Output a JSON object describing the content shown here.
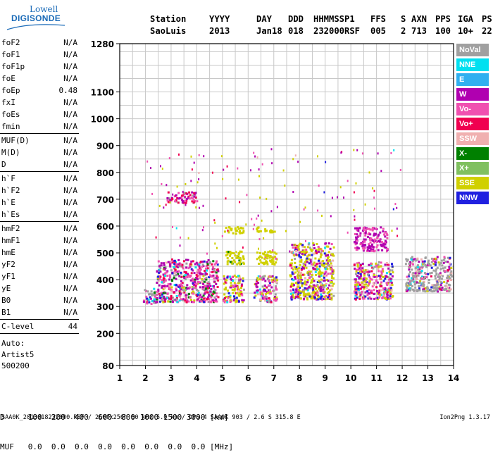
{
  "logo": {
    "line1": "Lowell",
    "line2": "DIGISONDE"
  },
  "header": {
    "labels": [
      "Station",
      "YYYY",
      "DAY",
      "DDD",
      "HHMMSS",
      "P1",
      "FFS",
      "S",
      "AXN",
      "PPS",
      "IGA",
      "PS"
    ],
    "values": [
      "SaoLuis",
      "2013",
      "Jan18",
      "018",
      "232000",
      "RSF",
      "005",
      "2",
      "713",
      "100",
      "10+",
      "22"
    ]
  },
  "params": [
    {
      "k": "foF2",
      "v": "N/A"
    },
    {
      "k": "foF1",
      "v": "N/A"
    },
    {
      "k": "foF1p",
      "v": "N/A"
    },
    {
      "k": "foE",
      "v": "N/A"
    },
    {
      "k": "foEp",
      "v": "0.48"
    },
    {
      "k": "fxI",
      "v": "N/A"
    },
    {
      "k": "foEs",
      "v": "N/A"
    },
    {
      "k": "fmin",
      "v": "N/A"
    },
    {
      "k": "MUF(D)",
      "v": "N/A"
    },
    {
      "k": "M(D)",
      "v": "N/A"
    },
    {
      "k": "D",
      "v": "N/A"
    },
    {
      "k": "h`F",
      "v": "N/A"
    },
    {
      "k": "h`F2",
      "v": "N/A"
    },
    {
      "k": "h`E",
      "v": "N/A"
    },
    {
      "k": "h`Es",
      "v": "N/A"
    },
    {
      "k": "hmF2",
      "v": "N/A"
    },
    {
      "k": "hmF1",
      "v": "N/A"
    },
    {
      "k": "hmE",
      "v": "N/A"
    },
    {
      "k": "yF2",
      "v": "N/A"
    },
    {
      "k": "yF1",
      "v": "N/A"
    },
    {
      "k": "yE",
      "v": "N/A"
    },
    {
      "k": "B0",
      "v": "N/A"
    },
    {
      "k": "B1",
      "v": "N/A"
    },
    {
      "k": "C-level",
      "v": "44"
    }
  ],
  "auto": [
    "Auto:",
    "Artist5",
    "500200"
  ],
  "legend": [
    {
      "label": "NoVal",
      "color": "#a0a0a0"
    },
    {
      "label": "NNE",
      "color": "#00e0f0"
    },
    {
      "label": "E",
      "color": "#30b0f0"
    },
    {
      "label": "W",
      "color": "#b000b0"
    },
    {
      "label": "Vo-",
      "color": "#f050b0"
    },
    {
      "label": "Vo+",
      "color": "#f00050"
    },
    {
      "label": "SSW",
      "color": "#f0b0b0"
    },
    {
      "label": "X-",
      "color": "#008000"
    },
    {
      "label": "X+",
      "color": "#80c060"
    },
    {
      "label": "SSE",
      "color": "#d0d000"
    },
    {
      "label": "NNW",
      "color": "#2020e0"
    }
  ],
  "bottom": {
    "row1": "D     100  200  400  600  800 1000 1500 3000 [km]",
    "row2": "MUF   0.0  0.0  0.0  0.0  0.0  0.0  0.0  0.0 [MHz]"
  },
  "footer": "SAA0K_2013018232000.RSF / 260fx256h 50 kHz 5.0 km / DPS-4 SAA0K 903 / 2.6 S 315.8 E",
  "version": "Ion2Png 1.3.17",
  "chart_data": {
    "type": "scatter",
    "title": "",
    "xlabel": "",
    "ylabel": "",
    "xlim": [
      1,
      14
    ],
    "ylim": [
      80,
      1280
    ],
    "xticks": [
      1,
      2,
      3,
      4,
      5,
      6,
      7,
      8,
      9,
      10,
      11,
      12,
      13,
      14
    ],
    "yticks": [
      80,
      200,
      300,
      400,
      500,
      600,
      700,
      800,
      900,
      1000,
      1100,
      1280
    ],
    "grid": true,
    "legend_position": "right",
    "clusters": [
      {
        "x": [
          1.9,
          2.4
        ],
        "y": [
          310,
          370
        ],
        "weights": [
          0.4,
          0.1,
          0.05,
          0.2,
          0.05,
          0.05,
          0.05,
          0.05,
          0.05
        ]
      },
      {
        "x": [
          2.4,
          4.8
        ],
        "y": [
          320,
          480
        ],
        "weights": [
          0.1,
          0.05,
          0.25,
          0.25,
          0.15,
          0.05,
          0.05,
          0.05,
          0.05
        ]
      },
      {
        "x": [
          2.8,
          4.0
        ],
        "y": [
          690,
          730
        ],
        "weights": [
          0.1,
          0.0,
          0.3,
          0.2,
          0.4,
          0.0,
          0.0,
          0.0,
          0.0
        ]
      },
      {
        "x": [
          5.0,
          5.8
        ],
        "y": [
          320,
          420
        ],
        "weights": [
          0.05,
          0.05,
          0.1,
          0.2,
          0.1,
          0.05,
          0.05,
          0.4,
          0.0
        ]
      },
      {
        "x": [
          5.1,
          5.8
        ],
        "y": [
          460,
          510
        ],
        "weights": [
          0.0,
          0.0,
          0.0,
          0.0,
          0.0,
          0.0,
          0.0,
          0.95,
          0.05
        ]
      },
      {
        "x": [
          5.0,
          5.8
        ],
        "y": [
          575,
          600
        ],
        "weights": [
          0.0,
          0.0,
          0.0,
          0.0,
          0.0,
          0.0,
          0.0,
          1.0,
          0.0
        ]
      },
      {
        "x": [
          6.2,
          7.1
        ],
        "y": [
          320,
          420
        ],
        "weights": [
          0.1,
          0.05,
          0.2,
          0.25,
          0.05,
          0.05,
          0.05,
          0.25,
          0.0
        ]
      },
      {
        "x": [
          6.3,
          7.1
        ],
        "y": [
          460,
          510
        ],
        "weights": [
          0.0,
          0.0,
          0.0,
          0.05,
          0.0,
          0.0,
          0.0,
          0.95,
          0.0
        ]
      },
      {
        "x": [
          6.3,
          7.0
        ],
        "y": [
          580,
          600
        ],
        "weights": [
          0.0,
          0.0,
          0.0,
          0.0,
          0.0,
          0.0,
          0.0,
          1.0,
          0.0
        ]
      },
      {
        "x": [
          7.6,
          9.3
        ],
        "y": [
          330,
          540
        ],
        "weights": [
          0.05,
          0.03,
          0.15,
          0.1,
          0.05,
          0.1,
          0.07,
          0.45,
          0.0
        ]
      },
      {
        "x": [
          10.1,
          11.6
        ],
        "y": [
          330,
          470
        ],
        "weights": [
          0.05,
          0.05,
          0.2,
          0.3,
          0.1,
          0.05,
          0.05,
          0.2,
          0.0
        ]
      },
      {
        "x": [
          10.1,
          11.4
        ],
        "y": [
          510,
          600
        ],
        "weights": [
          0.0,
          0.0,
          0.6,
          0.4,
          0.0,
          0.0,
          0.0,
          0.0,
          0.0
        ]
      },
      {
        "x": [
          12.1,
          13.9
        ],
        "y": [
          360,
          490
        ],
        "weights": [
          0.55,
          0.05,
          0.1,
          0.05,
          0.05,
          0.05,
          0.1,
          0.05,
          0.0
        ]
      }
    ]
  }
}
